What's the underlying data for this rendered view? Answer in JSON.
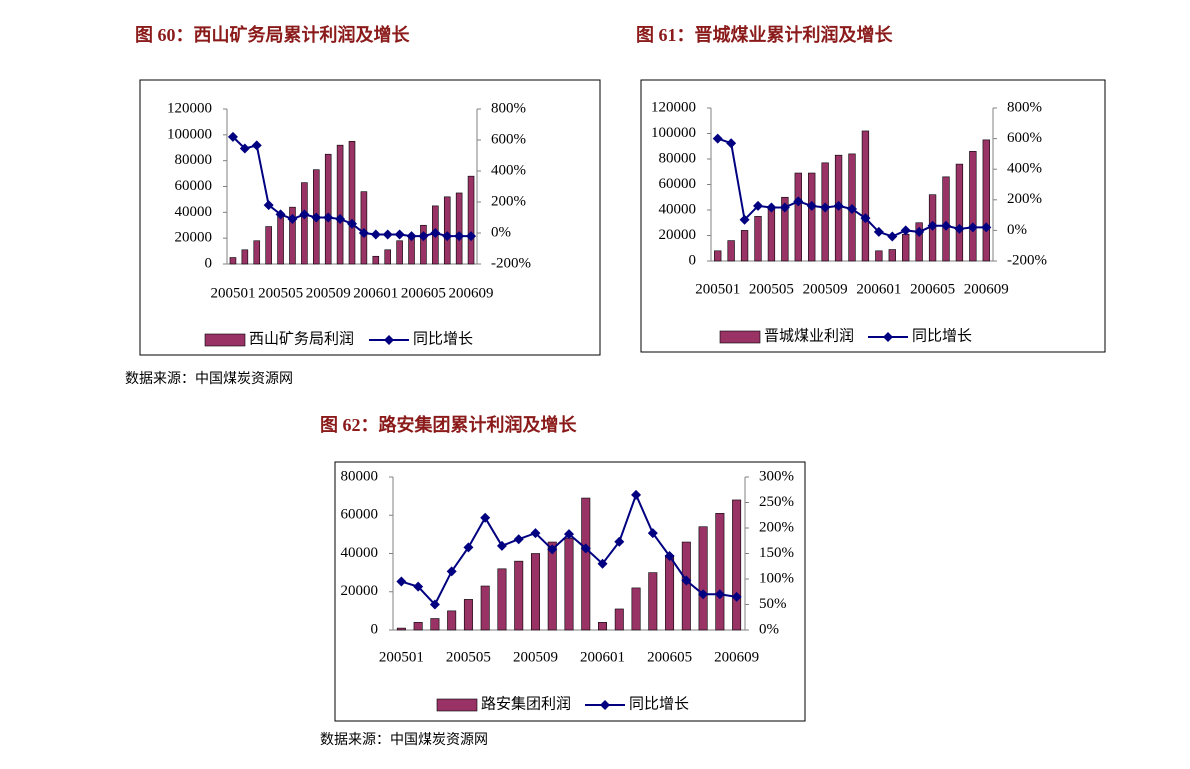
{
  "chart_data": [
    {
      "type": "bar",
      "title": "图 60：西山矿务局累计利润及增长",
      "source": "数据来源：中国煤炭资源网",
      "categories": [
        "200501",
        null,
        null,
        null,
        "200505",
        null,
        null,
        null,
        "200509",
        null,
        null,
        null,
        "200601",
        null,
        null,
        null,
        "200605",
        null,
        null,
        null,
        "200609"
      ],
      "series": [
        {
          "name": "西山矿务局利润",
          "color": "#993366",
          "values": [
            5000,
            11000,
            18000,
            29000,
            37000,
            44000,
            63000,
            73000,
            85000,
            92000,
            95000,
            56000,
            6000,
            11000,
            18000,
            22000,
            30000,
            45000,
            52000,
            55000,
            68000
          ]
        },
        {
          "name": "同比增长",
          "color": "#000080",
          "axis": "y2",
          "values": [
            620,
            545,
            565,
            180,
            120,
            90,
            120,
            100,
            100,
            90,
            60,
            0,
            -10,
            -10,
            -10,
            -20,
            -20,
            0,
            -20,
            -20,
            -20
          ]
        }
      ],
      "ylim": [
        0,
        120000
      ],
      "yticks": [
        0,
        20000,
        40000,
        60000,
        80000,
        100000,
        120000
      ],
      "y2lim": [
        -200,
        800
      ],
      "y2ticks": [
        {
          "value": -200,
          "label": "-200%"
        },
        {
          "value": 0,
          "label": "0%"
        },
        {
          "value": 200,
          "label": "200%"
        },
        {
          "value": 400,
          "label": "400%"
        },
        {
          "value": 600,
          "label": "600%"
        },
        {
          "value": 800,
          "label": "800%"
        }
      ]
    },
    {
      "type": "bar",
      "title": "图 61：晋城煤业累计利润及增长",
      "categories": [
        "200501",
        null,
        null,
        null,
        "200505",
        null,
        null,
        null,
        "200509",
        null,
        null,
        null,
        "200601",
        null,
        null,
        null,
        "200605",
        null,
        null,
        null,
        "200609"
      ],
      "series": [
        {
          "name": "晋城煤业利润",
          "color": "#993366",
          "values": [
            8000,
            16000,
            24000,
            35000,
            41000,
            50000,
            69000,
            69000,
            77000,
            83000,
            84000,
            102000,
            8000,
            9000,
            21000,
            30000,
            52000,
            66000,
            76000,
            86000,
            95000
          ]
        },
        {
          "name": "同比增长",
          "color": "#000080",
          "axis": "y2",
          "values": [
            600,
            570,
            70,
            160,
            150,
            150,
            190,
            160,
            150,
            160,
            140,
            80,
            -10,
            -40,
            0,
            -10,
            30,
            30,
            10,
            20,
            20
          ]
        }
      ],
      "ylim": [
        0,
        120000
      ],
      "yticks": [
        0,
        20000,
        40000,
        60000,
        80000,
        100000,
        120000
      ],
      "y2lim": [
        -200,
        800
      ],
      "y2ticks": [
        {
          "value": -200,
          "label": "-200%"
        },
        {
          "value": 0,
          "label": "0%"
        },
        {
          "value": 200,
          "label": "200%"
        },
        {
          "value": 400,
          "label": "400%"
        },
        {
          "value": 600,
          "label": "600%"
        },
        {
          "value": 800,
          "label": "800%"
        }
      ]
    },
    {
      "type": "bar",
      "title": "图 62：路安集团累计利润及增长",
      "source": "数据来源：中国煤炭资源网",
      "categories": [
        "200501",
        null,
        null,
        null,
        "200505",
        null,
        null,
        null,
        "200509",
        null,
        null,
        null,
        "200601",
        null,
        null,
        null,
        "200605",
        null,
        null,
        null,
        "200609"
      ],
      "series": [
        {
          "name": "路安集团利润",
          "color": "#993366",
          "values": [
            1000,
            4000,
            6000,
            10000,
            16000,
            23000,
            32000,
            36000,
            40000,
            46000,
            48000,
            69000,
            4000,
            11000,
            22000,
            30000,
            39000,
            46000,
            54000,
            61000,
            68000
          ]
        },
        {
          "name": "同比增长",
          "color": "#000080",
          "axis": "y2",
          "values": [
            95,
            85,
            50,
            115,
            162,
            220,
            165,
            178,
            190,
            158,
            188,
            160,
            130,
            173,
            265,
            190,
            145,
            97,
            70,
            70,
            65
          ]
        }
      ],
      "ylim": [
        0,
        80000
      ],
      "yticks": [
        0,
        20000,
        40000,
        60000,
        80000
      ],
      "y2lim": [
        0,
        300
      ],
      "y2ticks": [
        {
          "value": 0,
          "label": "0%"
        },
        {
          "value": 50,
          "label": "50%"
        },
        {
          "value": 100,
          "label": "100%"
        },
        {
          "value": 150,
          "label": "150%"
        },
        {
          "value": 200,
          "label": "200%"
        },
        {
          "value": 250,
          "label": "250%"
        },
        {
          "value": 300,
          "label": "300%"
        }
      ]
    }
  ]
}
